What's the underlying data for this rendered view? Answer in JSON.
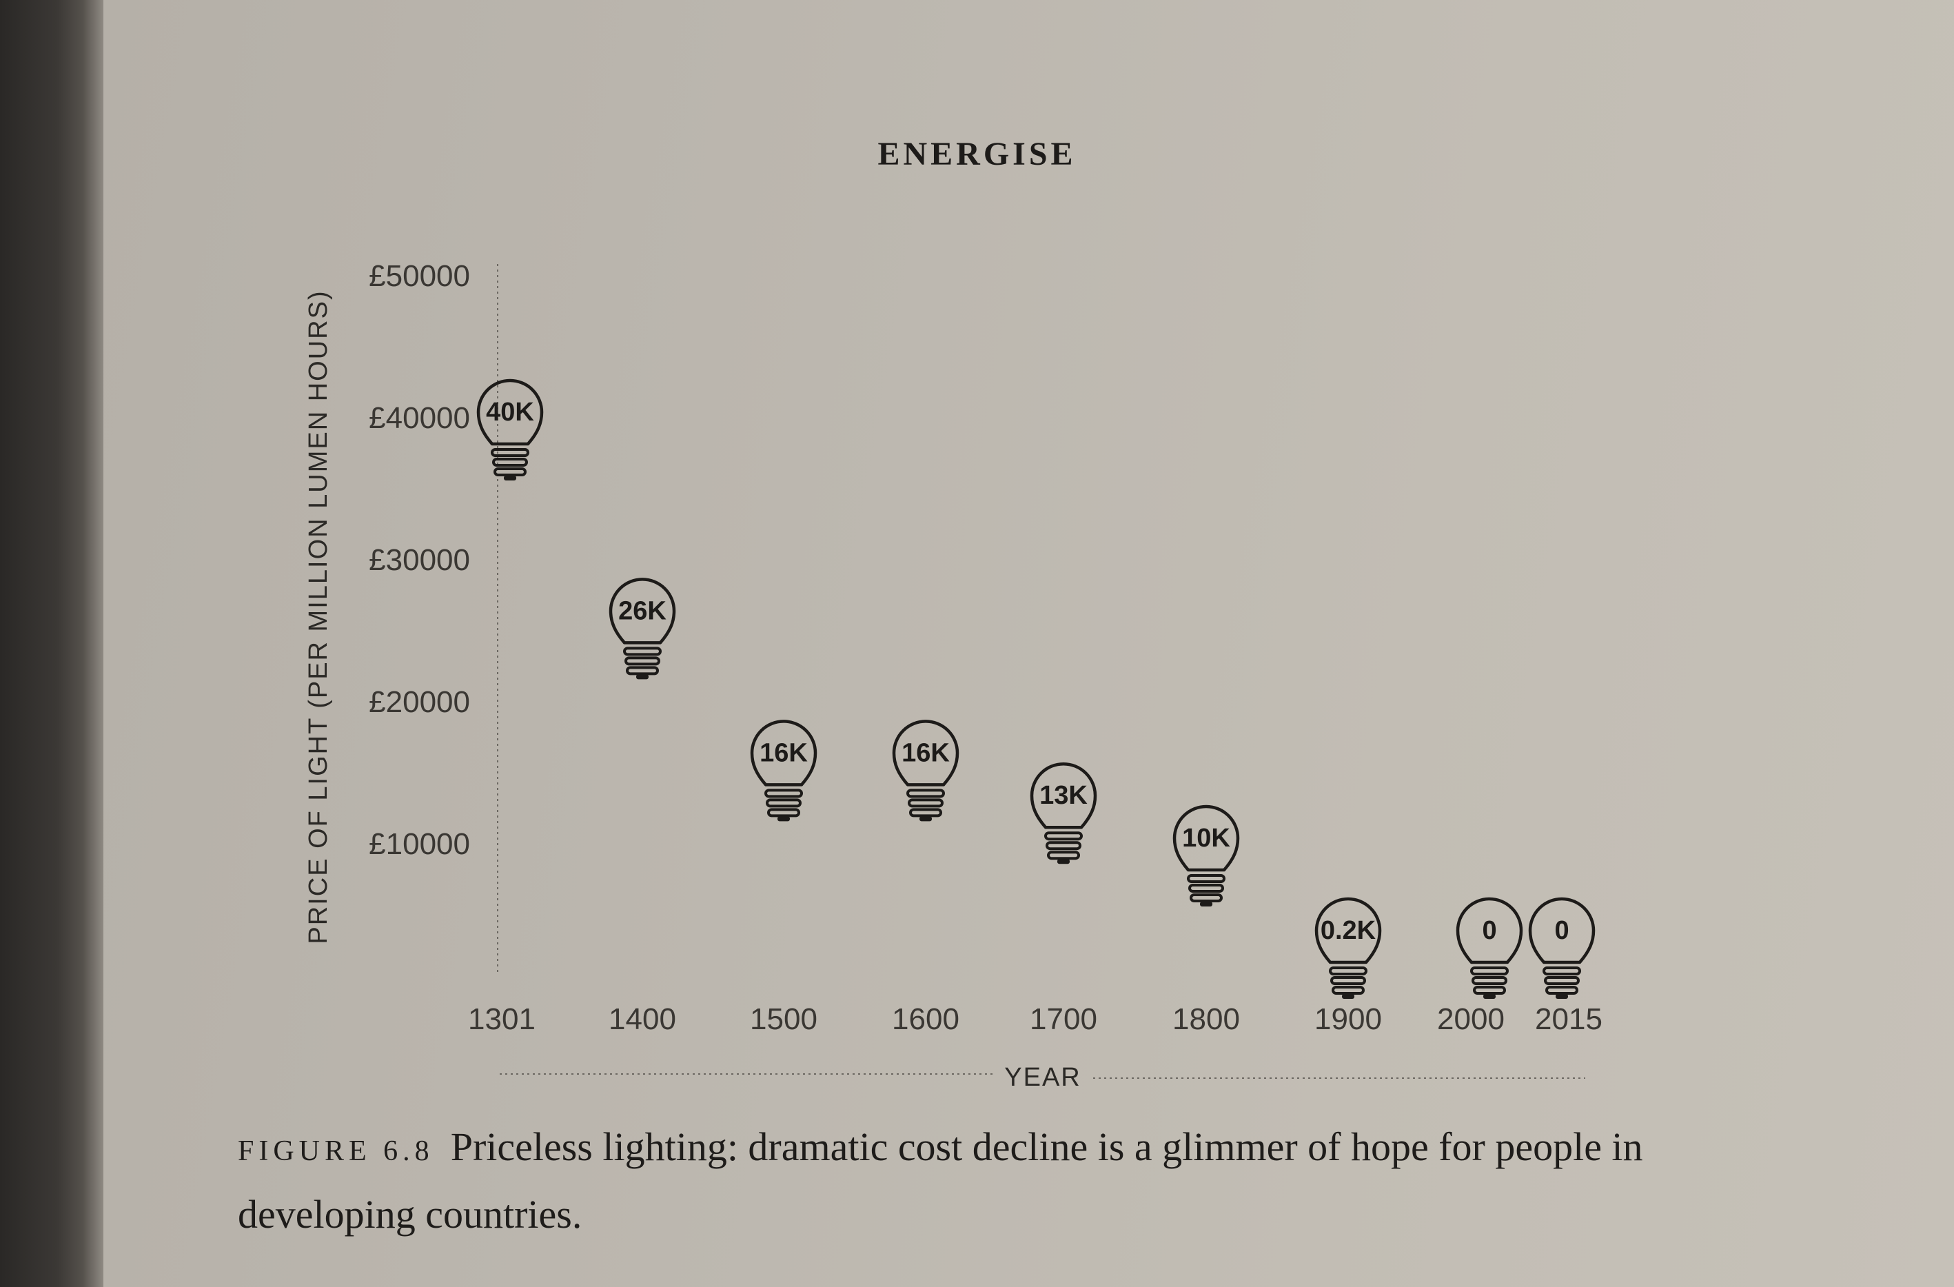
{
  "page": {
    "header": "ENERGISE",
    "caption_label": "FIGURE 6.8",
    "caption_text": "Priceless lighting: dramatic cost decline is a glimmer of hope for people in developing countries."
  },
  "chart_data": {
    "type": "scatter",
    "title": "",
    "xlabel": "YEAR",
    "ylabel": "PRICE OF LIGHT (PER MILLION LUMEN HOURS)",
    "categories": [
      "1301",
      "1400",
      "1500",
      "1600",
      "1700",
      "1800",
      "1900",
      "2000",
      "2015"
    ],
    "values": [
      40000,
      26000,
      16000,
      16000,
      13000,
      10000,
      200,
      0,
      0
    ],
    "point_labels": [
      "40K",
      "26K",
      "16K",
      "16K",
      "13K",
      "10K",
      "0.2K",
      "0",
      "0"
    ],
    "y_ticks": [
      10000,
      20000,
      30000,
      40000,
      50000
    ],
    "y_tick_labels": [
      "£10000",
      "£20000",
      "£30000",
      "£40000",
      "£50000"
    ],
    "ylim": [
      0,
      50000
    ],
    "marker": "light-bulb-icon",
    "grid": false,
    "colors": {
      "ink": "#1d1b19",
      "paper": "#bdb8af"
    }
  }
}
